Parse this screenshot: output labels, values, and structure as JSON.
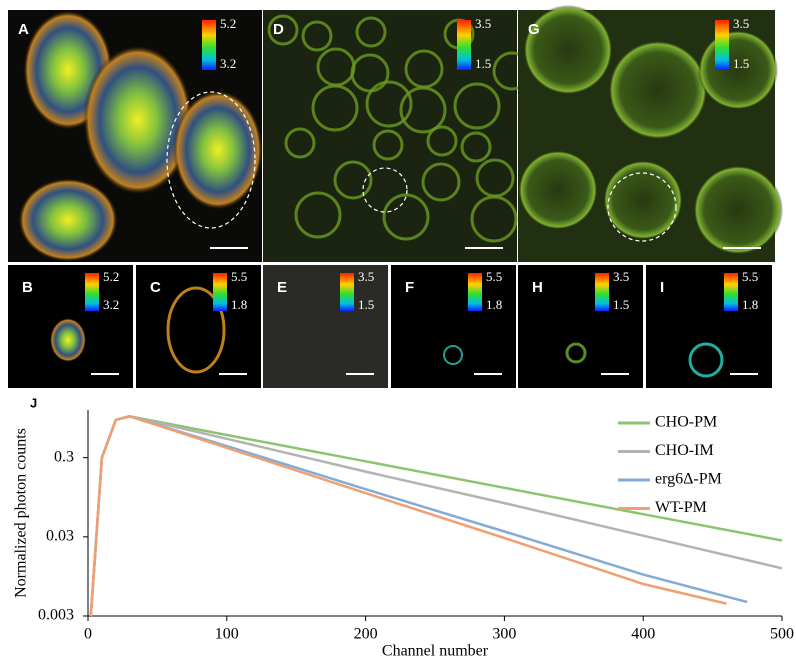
{
  "panels": [
    {
      "label": "A",
      "scale_max": 5.2,
      "scale_min": 3.2
    },
    {
      "label": "D",
      "scale_max": 3.5,
      "scale_min": 1.5
    },
    {
      "label": "G",
      "scale_max": 3.5,
      "scale_min": 1.5
    },
    {
      "label": "B",
      "scale_max": 5.2,
      "scale_min": 3.2
    },
    {
      "label": "C",
      "scale_max": 5.5,
      "scale_min": 1.8
    },
    {
      "label": "E",
      "scale_max": 3.5,
      "scale_min": 1.5
    },
    {
      "label": "F",
      "scale_max": 5.5,
      "scale_min": 1.8
    },
    {
      "label": "H",
      "scale_max": 3.5,
      "scale_min": 1.5
    },
    {
      "label": "I",
      "scale_max": 5.5,
      "scale_min": 1.8
    }
  ],
  "chart_data": {
    "type": "line",
    "panel_label": "J",
    "x_label": "Channel number",
    "y_label": "Normalized photon counts",
    "log_y": true,
    "xlim": [
      0,
      500
    ],
    "xticks": [
      0,
      100,
      200,
      300,
      400,
      500
    ],
    "ylim": [
      0.003,
      1.2
    ],
    "yticks": [
      0.003,
      0.03,
      0.3
    ],
    "legend": "upper right",
    "series": [
      {
        "name": "CHO-PM",
        "color": "#8cc46e",
        "x": [
          2,
          10,
          20,
          30,
          100,
          200,
          300,
          400,
          500
        ],
        "values": [
          0.003,
          0.3,
          0.9,
          1.0,
          0.58,
          0.27,
          0.125,
          0.058,
          0.027
        ]
      },
      {
        "name": "CHO-IM",
        "color": "#b3b3b3",
        "x": [
          2,
          10,
          20,
          30,
          100,
          200,
          300,
          400,
          500
        ],
        "values": [
          0.003,
          0.3,
          0.9,
          1.0,
          0.52,
          0.2,
          0.08,
          0.031,
          0.012
        ]
      },
      {
        "name": "erg6Δ-PM",
        "color": "#82abd6",
        "x": [
          2,
          10,
          20,
          30,
          100,
          200,
          300,
          400,
          475
        ],
        "values": [
          0.003,
          0.3,
          0.9,
          1.0,
          0.42,
          0.12,
          0.035,
          0.01,
          0.0045
        ]
      },
      {
        "name": "WT-PM",
        "color": "#f0a070",
        "x": [
          2,
          10,
          20,
          30,
          100,
          200,
          300,
          400,
          460
        ],
        "values": [
          0.003,
          0.3,
          0.9,
          1.0,
          0.4,
          0.107,
          0.029,
          0.0076,
          0.0043
        ]
      }
    ]
  }
}
